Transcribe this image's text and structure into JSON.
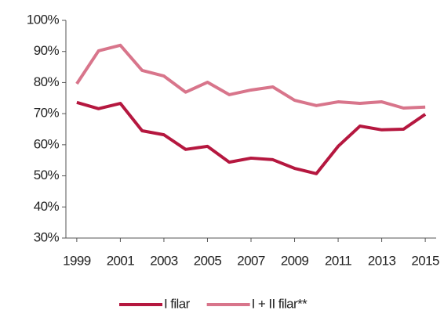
{
  "chart_data": {
    "type": "line",
    "x": [
      1999,
      2000,
      2001,
      2002,
      2003,
      2004,
      2005,
      2006,
      2007,
      2008,
      2009,
      2010,
      2011,
      2012,
      2013,
      2014,
      2015
    ],
    "series": [
      {
        "name": "I filar",
        "color": "#b5173f",
        "values": [
          73.6,
          71.6,
          73.3,
          64.5,
          63.2,
          58.5,
          59.5,
          54.4,
          55.7,
          55.2,
          52.4,
          50.7,
          59.5,
          66.0,
          64.8,
          65.0,
          69.8
        ]
      },
      {
        "name": "I + II filar**",
        "color": "#d8758b",
        "values": [
          79.6,
          90.2,
          92.0,
          83.9,
          82.1,
          76.9,
          80.1,
          76.1,
          77.6,
          78.6,
          74.3,
          72.6,
          73.8,
          73.3,
          73.8,
          71.8,
          72.1
        ]
      }
    ],
    "xlim": [
      1998.5,
      2015.5
    ],
    "xticks": [
      1999,
      2001,
      2003,
      2005,
      2007,
      2009,
      2011,
      2013,
      2015
    ],
    "ylim": [
      30,
      100
    ],
    "yticks": [
      {
        "value": 30,
        "label": "30%"
      },
      {
        "value": 40,
        "label": "40%"
      },
      {
        "value": 50,
        "label": "50%"
      },
      {
        "value": 60,
        "label": "60%"
      },
      {
        "value": 70,
        "label": "70%"
      },
      {
        "value": 80,
        "label": "80%"
      },
      {
        "value": 90,
        "label": "90%"
      },
      {
        "value": 100,
        "label": "100%"
      }
    ],
    "legend": "bottom"
  }
}
